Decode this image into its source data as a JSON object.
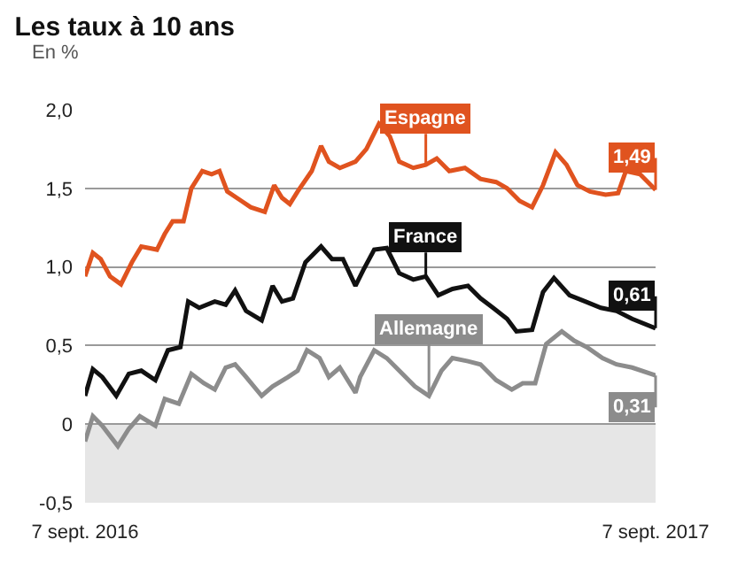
{
  "chart_data": {
    "type": "line",
    "title": "Les taux à 10 ans",
    "subtitle": "En %",
    "ylim": [
      -0.5,
      2.0
    ],
    "yticks": [
      {
        "value": 2.0,
        "label": "2,0"
      },
      {
        "value": 1.5,
        "label": "1,5"
      },
      {
        "value": 1.0,
        "label": "1,0"
      },
      {
        "value": 0.5,
        "label": "0,5"
      },
      0,
      {
        "value": -0.5,
        "label": "-0,5"
      }
    ],
    "xlim": [
      "2016-09-07",
      "2017-09-07"
    ],
    "xticks": [
      {
        "value": "2016-09-07",
        "label": "7 sept. 2016"
      },
      {
        "value": "2017-09-07",
        "label": "7 sept. 2017"
      }
    ],
    "grid": "y",
    "legend": false,
    "marker": "none",
    "line_style": "solid",
    "bands": [
      {
        "axis": "y",
        "from": -0.5,
        "to": 0,
        "color": "#e6e6e6"
      }
    ],
    "series": [
      {
        "name": "Espagne",
        "color": "#e0531f",
        "x": [
          "2016-09-07",
          "2016-09-12",
          "2016-09-17",
          "2016-09-23",
          "2016-09-30",
          "2016-10-07",
          "2016-10-13",
          "2016-10-23",
          "2016-10-28",
          "2016-11-02",
          "2016-11-09",
          "2016-11-14",
          "2016-11-21",
          "2016-11-27",
          "2016-12-02",
          "2016-12-07",
          "2016-12-16",
          "2016-12-22",
          "2016-12-31",
          "2017-01-06",
          "2017-01-11",
          "2017-01-16",
          "2017-01-21",
          "2017-01-30",
          "2017-02-05",
          "2017-02-10",
          "2017-02-17",
          "2017-02-27",
          "2017-03-06",
          "2017-03-14",
          "2017-03-21",
          "2017-03-27",
          "2017-04-05",
          "2017-04-13",
          "2017-04-20",
          "2017-04-28",
          "2017-05-08",
          "2017-05-18",
          "2017-05-28",
          "2017-06-04",
          "2017-06-12",
          "2017-06-20",
          "2017-06-27",
          "2017-07-05",
          "2017-07-12",
          "2017-07-19",
          "2017-07-27",
          "2017-08-06",
          "2017-08-14",
          "2017-08-19",
          "2017-08-28",
          "2017-09-07"
        ],
        "values": [
          0.94,
          1.09,
          1.05,
          0.94,
          0.89,
          1.03,
          1.13,
          1.11,
          1.21,
          1.29,
          1.29,
          1.5,
          1.61,
          1.59,
          1.61,
          1.48,
          1.42,
          1.38,
          1.35,
          1.52,
          1.44,
          1.4,
          1.48,
          1.61,
          1.77,
          1.67,
          1.63,
          1.67,
          1.75,
          1.91,
          1.83,
          1.67,
          1.63,
          1.65,
          1.69,
          1.61,
          1.63,
          1.56,
          1.54,
          1.5,
          1.42,
          1.38,
          1.52,
          1.73,
          1.65,
          1.52,
          1.48,
          1.46,
          1.47,
          1.61,
          1.59,
          1.49
        ],
        "value_labels": [
          null,
          null,
          null,
          null,
          null,
          null,
          null,
          null,
          null,
          null,
          null,
          null,
          null,
          null,
          null,
          null,
          null,
          null,
          null,
          null,
          null,
          null,
          null,
          null,
          null,
          null,
          null,
          null,
          null,
          null,
          null,
          null,
          null,
          null,
          null,
          null,
          null,
          null,
          null,
          null,
          null,
          null,
          null,
          null,
          null,
          null,
          null,
          null,
          null,
          null,
          null,
          "1,49"
        ]
      },
      {
        "name": "France",
        "color": "#111111",
        "x": [
          "2016-09-07",
          "2016-09-12",
          "2016-09-18",
          "2016-09-27",
          "2016-10-05",
          "2016-10-13",
          "2016-10-22",
          "2016-10-30",
          "2016-11-07",
          "2016-11-12",
          "2016-11-19",
          "2016-11-29",
          "2016-12-06",
          "2016-12-12",
          "2016-12-19",
          "2016-12-29",
          "2017-01-05",
          "2017-01-11",
          "2017-01-18",
          "2017-01-26",
          "2017-02-05",
          "2017-02-12",
          "2017-02-19",
          "2017-02-27",
          "2017-03-04",
          "2017-03-11",
          "2017-03-19",
          "2017-03-27",
          "2017-04-05",
          "2017-04-13",
          "2017-04-21",
          "2017-04-30",
          "2017-05-10",
          "2017-05-18",
          "2017-05-26",
          "2017-06-04",
          "2017-06-10",
          "2017-06-20",
          "2017-06-27",
          "2017-07-04",
          "2017-07-14",
          "2017-07-24",
          "2017-08-03",
          "2017-08-13",
          "2017-08-23",
          "2017-09-07"
        ],
        "values": [
          0.18,
          0.35,
          0.3,
          0.18,
          0.32,
          0.34,
          0.28,
          0.47,
          0.49,
          0.78,
          0.74,
          0.78,
          0.76,
          0.85,
          0.72,
          0.66,
          0.88,
          0.78,
          0.8,
          1.03,
          1.13,
          1.05,
          1.05,
          0.88,
          0.98,
          1.11,
          1.12,
          0.96,
          0.92,
          0.94,
          0.82,
          0.86,
          0.88,
          0.8,
          0.74,
          0.67,
          0.59,
          0.6,
          0.84,
          0.93,
          0.82,
          0.78,
          0.74,
          0.72,
          0.67,
          0.61
        ],
        "value_labels": [
          null,
          null,
          null,
          null,
          null,
          null,
          null,
          null,
          null,
          null,
          null,
          null,
          null,
          null,
          null,
          null,
          null,
          null,
          null,
          null,
          null,
          null,
          null,
          null,
          null,
          null,
          null,
          null,
          null,
          null,
          null,
          null,
          null,
          null,
          null,
          null,
          null,
          null,
          null,
          null,
          null,
          null,
          null,
          null,
          null,
          "0,61"
        ]
      },
      {
        "name": "Allemagne",
        "color": "#8c8c8c",
        "x": [
          "2016-09-07",
          "2016-09-12",
          "2016-09-18",
          "2016-09-28",
          "2016-10-05",
          "2016-10-12",
          "2016-10-22",
          "2016-10-28",
          "2016-11-06",
          "2016-11-14",
          "2016-11-22",
          "2016-11-29",
          "2016-12-06",
          "2016-12-12",
          "2016-12-19",
          "2016-12-29",
          "2017-01-05",
          "2017-01-15",
          "2017-01-21",
          "2017-01-27",
          "2017-02-04",
          "2017-02-10",
          "2017-02-17",
          "2017-02-27",
          "2017-03-02",
          "2017-03-11",
          "2017-03-19",
          "2017-03-27",
          "2017-04-06",
          "2017-04-15",
          "2017-04-23",
          "2017-04-30",
          "2017-05-10",
          "2017-05-18",
          "2017-05-28",
          "2017-06-07",
          "2017-06-14",
          "2017-06-22",
          "2017-06-29",
          "2017-07-09",
          "2017-07-17",
          "2017-07-25",
          "2017-08-04",
          "2017-08-13",
          "2017-08-23",
          "2017-09-07"
        ],
        "values": [
          -0.11,
          0.05,
          -0.01,
          -0.14,
          -0.03,
          0.05,
          -0.01,
          0.16,
          0.13,
          0.32,
          0.26,
          0.22,
          0.36,
          0.38,
          0.3,
          0.18,
          0.24,
          0.3,
          0.34,
          0.47,
          0.42,
          0.3,
          0.36,
          0.2,
          0.3,
          0.47,
          0.42,
          0.34,
          0.24,
          0.18,
          0.34,
          0.42,
          0.4,
          0.38,
          0.28,
          0.22,
          0.26,
          0.26,
          0.51,
          0.59,
          0.53,
          0.49,
          0.42,
          0.38,
          0.36,
          0.31
        ],
        "value_labels": [
          null,
          null,
          null,
          null,
          null,
          null,
          null,
          null,
          null,
          null,
          null,
          null,
          null,
          null,
          null,
          null,
          null,
          null,
          null,
          null,
          null,
          null,
          null,
          null,
          null,
          null,
          null,
          null,
          null,
          null,
          null,
          null,
          null,
          null,
          null,
          null,
          null,
          null,
          null,
          null,
          null,
          null,
          null,
          null,
          null,
          "0,31"
        ]
      }
    ]
  }
}
